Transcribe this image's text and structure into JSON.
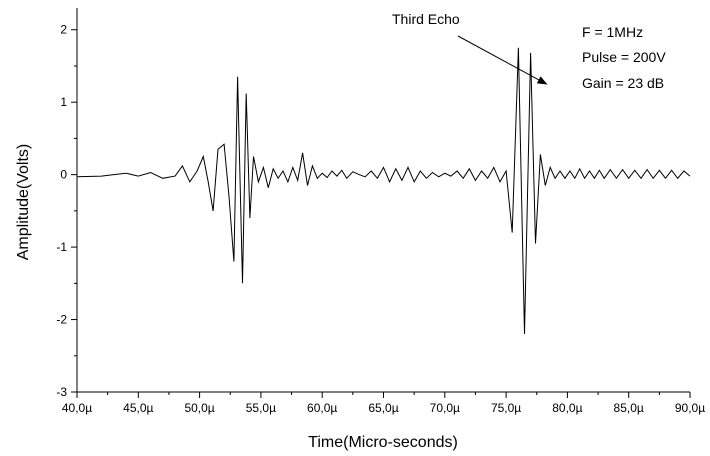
{
  "chart_data": {
    "type": "line",
    "title": "",
    "xlabel": "Time(Micro-seconds)",
    "ylabel": "Amplitude(Volts)",
    "xlim": [
      40,
      90
    ],
    "ylim": [
      -3,
      2.3
    ],
    "x_ticks": [
      {
        "value": 40,
        "label": "40,0µ"
      },
      {
        "value": 45,
        "label": "45,0µ"
      },
      {
        "value": 50,
        "label": "50,0µ"
      },
      {
        "value": 55,
        "label": "55,0µ"
      },
      {
        "value": 60,
        "label": "60,0µ"
      },
      {
        "value": 65,
        "label": "65,0µ"
      },
      {
        "value": 70,
        "label": "70,0µ"
      },
      {
        "value": 75,
        "label": "75,0µ"
      },
      {
        "value": 80,
        "label": "80,0µ"
      },
      {
        "value": 85,
        "label": "85,0µ"
      },
      {
        "value": 90,
        "label": "90,0µ"
      }
    ],
    "y_ticks": [
      {
        "value": -3,
        "label": "-3"
      },
      {
        "value": -2,
        "label": "-2"
      },
      {
        "value": -1,
        "label": "-1"
      },
      {
        "value": 0,
        "label": "0"
      },
      {
        "value": 1,
        "label": "1"
      },
      {
        "value": 2,
        "label": "2"
      }
    ],
    "grid": false,
    "series": [
      {
        "x": [
          40,
          42,
          43,
          44,
          45,
          46,
          47,
          48,
          48.6,
          49.2,
          49.8,
          50.3,
          50.7,
          51.1,
          51.5,
          52.0,
          52.4,
          52.8,
          53.1,
          53.5,
          53.8,
          54.1,
          54.4,
          54.8,
          55.2,
          55.6,
          56.0,
          56.4,
          56.8,
          57.2,
          57.6,
          58.0,
          58.4,
          58.8,
          59.2,
          59.6,
          60.0,
          60.4,
          60.8,
          61.2,
          61.6,
          62.0,
          62.5,
          63.0,
          63.5,
          64.0,
          64.5,
          65.0,
          65.5,
          66.0,
          66.5,
          67.0,
          67.5,
          68.0,
          68.5,
          69.0,
          69.5,
          70.0,
          70.5,
          71.0,
          71.5,
          72.0,
          72.5,
          73.0,
          73.5,
          74.0,
          74.5,
          75.0,
          75.5,
          76.0,
          76.5,
          77.0,
          77.4,
          77.8,
          78.2,
          78.6,
          79.0,
          79.4,
          79.8,
          80.2,
          80.6,
          81.0,
          81.4,
          81.8,
          82.2,
          82.6,
          83.0,
          83.5,
          84.0,
          84.5,
          85.0,
          85.5,
          86.0,
          86.5,
          87.0,
          87.5,
          88.0,
          88.5,
          89.0,
          89.5,
          90.0
        ],
        "y": [
          -0.03,
          -0.02,
          0.0,
          0.02,
          -0.02,
          0.03,
          -0.05,
          -0.02,
          0.12,
          -0.1,
          0.05,
          0.25,
          -0.1,
          -0.5,
          0.35,
          0.42,
          -0.3,
          -1.2,
          1.35,
          -1.5,
          1.12,
          -0.6,
          0.25,
          -0.1,
          0.1,
          -0.18,
          0.08,
          -0.05,
          0.05,
          -0.1,
          0.1,
          -0.08,
          0.3,
          -0.15,
          0.12,
          -0.05,
          0.02,
          -0.04,
          0.05,
          -0.02,
          0.06,
          -0.05,
          0.04,
          0.0,
          -0.03,
          0.05,
          -0.05,
          0.1,
          -0.1,
          0.08,
          -0.08,
          0.1,
          -0.1,
          0.05,
          -0.05,
          0.03,
          -0.03,
          0.02,
          -0.02,
          0.05,
          -0.05,
          0.08,
          -0.08,
          0.05,
          -0.05,
          0.1,
          -0.1,
          0.05,
          -0.8,
          1.75,
          -2.2,
          1.68,
          -0.95,
          0.28,
          -0.15,
          0.1,
          -0.05,
          0.05,
          -0.05,
          0.05,
          -0.05,
          0.08,
          -0.05,
          0.05,
          -0.05,
          0.06,
          -0.05,
          0.07,
          -0.05,
          0.07,
          -0.05,
          0.06,
          -0.05,
          0.07,
          -0.05,
          0.06,
          -0.05,
          0.06,
          -0.05,
          0.05,
          -0.02
        ]
      }
    ],
    "annotations": [
      {
        "text": "Third Echo",
        "arrow_to_x": 78.3,
        "arrow_to_y": 1.25
      },
      {
        "text": "F = 1MHz"
      },
      {
        "text": "Pulse = 200V"
      },
      {
        "text": "Gain = 23 dB"
      }
    ]
  }
}
